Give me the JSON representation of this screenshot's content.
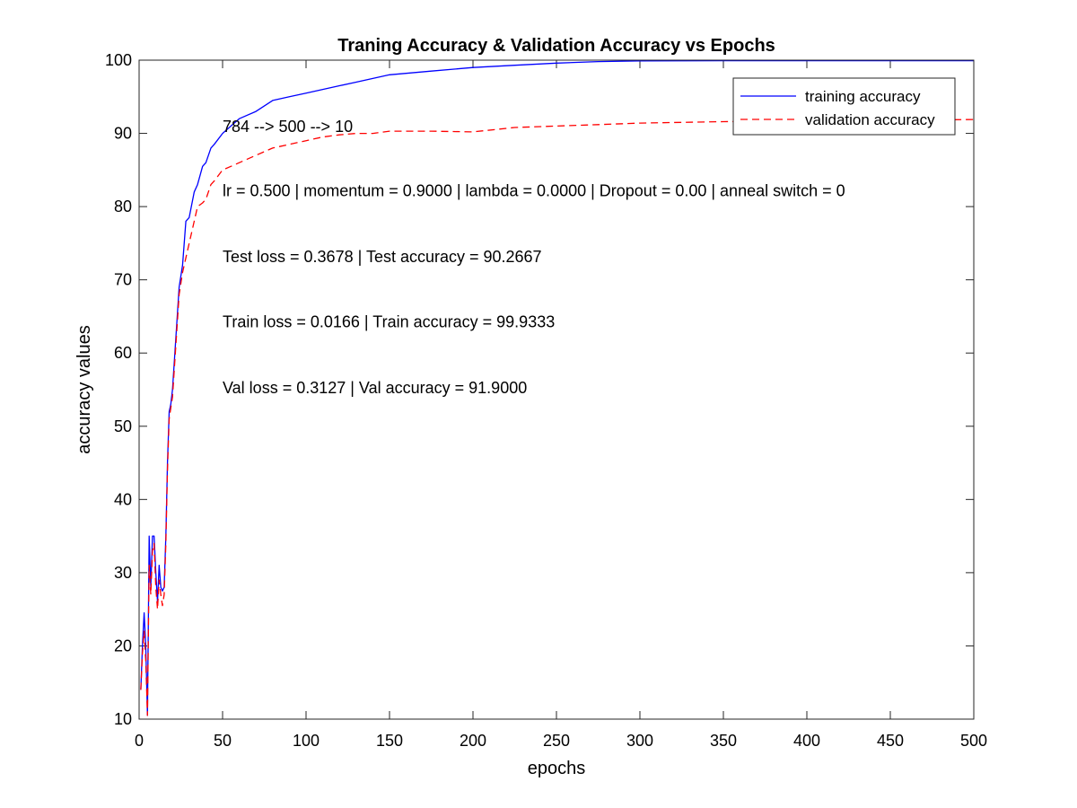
{
  "chart_data": {
    "type": "line",
    "title": "Traning Accuracy & Validation Accuracy vs Epochs",
    "xlabel": "epochs",
    "ylabel": "accuracy values",
    "xlim": [
      0,
      500
    ],
    "ylim": [
      10,
      100
    ],
    "xticks": [
      0,
      50,
      100,
      150,
      200,
      250,
      300,
      350,
      400,
      450,
      500
    ],
    "yticks": [
      10,
      20,
      30,
      40,
      50,
      60,
      70,
      80,
      90,
      100
    ],
    "grid": false,
    "legend_position": "top-right",
    "annotations": [
      "784 --> 500 --> 10",
      "lr = 0.500 | momentum = 0.9000 | lambda = 0.0000 | Dropout = 0.00 | anneal switch = 0",
      "Test loss = 0.3678 | Test accuracy = 90.2667",
      "Train loss = 0.0166 | Train accuracy = 99.9333",
      "Val loss = 0.3127 | Val accuracy = 91.9000"
    ],
    "series": [
      {
        "name": "training accuracy",
        "color": "#0000ff",
        "line_style": "solid",
        "x": [
          1,
          2,
          3,
          4,
          5,
          6,
          7,
          8,
          9,
          10,
          11,
          12,
          13,
          14,
          15,
          16,
          17,
          18,
          19,
          20,
          22,
          24,
          26,
          28,
          30,
          33,
          35,
          38,
          40,
          43,
          45,
          50,
          55,
          60,
          70,
          80,
          90,
          100,
          110,
          120,
          130,
          140,
          150,
          175,
          200,
          225,
          250,
          275,
          300,
          325,
          350,
          400,
          450,
          500
        ],
        "y": [
          14,
          20,
          24.5,
          20,
          10.5,
          35,
          28,
          35,
          35,
          30,
          26,
          31,
          28,
          27.5,
          28,
          35,
          45,
          52,
          53,
          55,
          62,
          69,
          72,
          78,
          78.5,
          82,
          83,
          85.5,
          86,
          88,
          88.5,
          90,
          91,
          92,
          93,
          94.5,
          95,
          95.5,
          96,
          96.5,
          97,
          97.5,
          98,
          98.5,
          99,
          99.3,
          99.6,
          99.8,
          99.9,
          99.92,
          99.93,
          99.93,
          99.93,
          99.93
        ]
      },
      {
        "name": "validation accuracy",
        "color": "#ff0000",
        "line_style": "dashed",
        "x": [
          1,
          2,
          3,
          4,
          5,
          6,
          7,
          8,
          9,
          10,
          11,
          12,
          13,
          14,
          15,
          16,
          17,
          18,
          19,
          20,
          22,
          24,
          26,
          28,
          30,
          33,
          35,
          38,
          40,
          43,
          45,
          50,
          55,
          60,
          70,
          80,
          90,
          100,
          110,
          120,
          130,
          140,
          150,
          175,
          200,
          225,
          250,
          275,
          300,
          325,
          350,
          400,
          450,
          500
        ],
        "y": [
          14,
          19,
          22,
          18,
          10.5,
          31,
          27,
          33,
          34,
          28,
          25,
          29,
          27,
          25.5,
          27,
          34,
          44,
          51,
          52.5,
          54,
          61,
          68,
          71,
          73,
          75,
          78,
          80,
          80.5,
          81,
          83,
          83.5,
          85,
          85.5,
          86,
          87,
          88,
          88.5,
          89,
          89.5,
          89.8,
          90,
          90,
          90.3,
          90.3,
          90.2,
          90.8,
          91,
          91.2,
          91.4,
          91.5,
          91.6,
          91.7,
          91.8,
          91.9
        ]
      }
    ]
  }
}
